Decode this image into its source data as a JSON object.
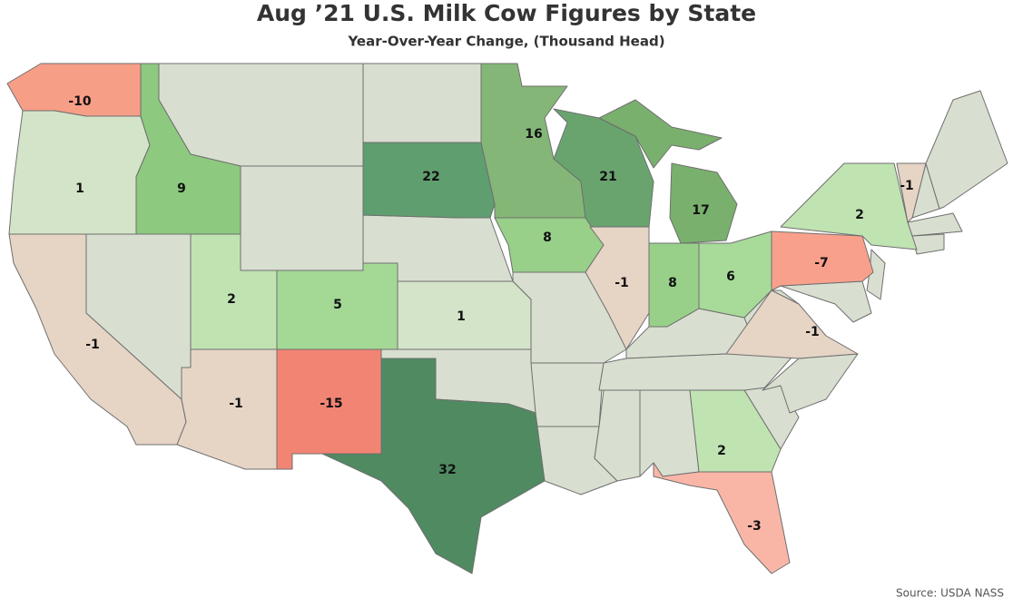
{
  "chart_data": {
    "type": "choropleth",
    "title": "Aug ’21 U.S. Milk Cow Figures by State",
    "subtitle": "Year-Over-Year Change, (Thousand Head)",
    "source": "Source: USDA NASS",
    "values": [
      -10,
      1,
      9,
      -1,
      2,
      -1,
      5,
      -15,
      22,
      16,
      21,
      8,
      1,
      32,
      -1,
      17,
      8,
      6,
      2,
      -3,
      -7,
      2,
      -1,
      -1
    ],
    "colors": [
      "#f79e87",
      "#d3e4c8",
      "#8dc97f",
      "#e6d4c5",
      "#c0e3b2",
      "#e6d4c5",
      "#a3d995",
      "#f28473",
      "#5f9e6f",
      "#84b777",
      "#69a46f",
      "#98d08a",
      "#d3e4c8",
      "#4f8a61",
      "#e6d4c5",
      "#79b06d",
      "#98d08a",
      "#a8da99",
      "#c0e3b2",
      "#f9b6a6",
      "#f9a08c",
      "#c0e3b2",
      "#e6d4c5",
      "#e6d4c5"
    ],
    "base_color": "#d8dfd0"
  }
}
